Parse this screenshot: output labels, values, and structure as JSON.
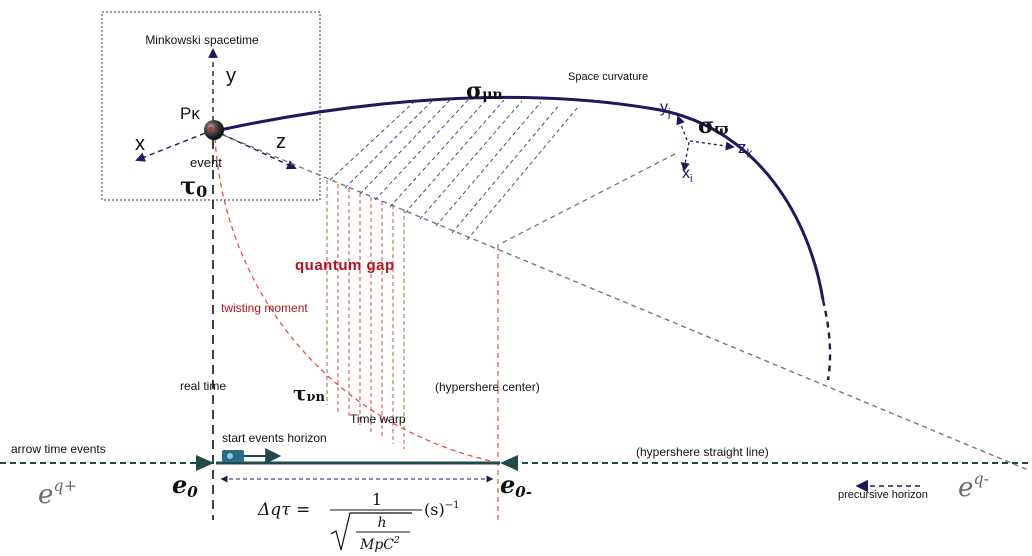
{
  "labels": {
    "minkowski": "Minkowski spacetime",
    "y_axis": "y",
    "x_axis": "x",
    "z_axis": "z",
    "p_kappa": "Pκ",
    "event": "event",
    "tau0": "τ",
    "tau0_sub": "0",
    "space_curvature": "Space curvature",
    "sigma_mu_n": "σ",
    "sigma_mu_n_sub": "μn",
    "sigma_varpi": "σ",
    "sigma_varpi_sub": "ϖ",
    "yj": "y",
    "yj_sub": "j",
    "zk": "z",
    "zk_sub": "k",
    "xi": "x",
    "xi_sub": "i",
    "quantum_gap": "quantum gap",
    "twisting_moment": "twisting moment",
    "real_time": "real time",
    "tau_nu_n": "τ",
    "tau_nu_n_sub": "νn",
    "time_warp": "Time warp",
    "hypersphere_center": "(hypershere center)",
    "start_events_horizon": "start events horizon",
    "arrow_time_events": "arrow time events",
    "hypersphere_line": "(hypershere straight line)",
    "e_q_plus_base": "e",
    "e_q_plus_sup": "q+",
    "e0": "e",
    "e0_sub": "0",
    "e0_minus": "e",
    "e0_minus_sub": "0-",
    "precursive_horizon": "precursive horizon",
    "e_q_minus_base": "e",
    "e_q_minus_sup": "q-",
    "formula_lhs": "Δqτ =",
    "formula_num": "1",
    "formula_h": "h",
    "formula_den": "MpC",
    "formula_den_sup": "2",
    "formula_s": "(s)",
    "formula_s_sup": "−1"
  },
  "icons": {
    "event_sphere": "sphere-icon",
    "clock_device": "device-icon"
  },
  "colors": {
    "navy": "#1c1a5e",
    "red_dashed": "#e8413a",
    "dark_red_text": "#b3141b",
    "teal": "#1f4a4a",
    "gray_dashed": "#777777"
  }
}
